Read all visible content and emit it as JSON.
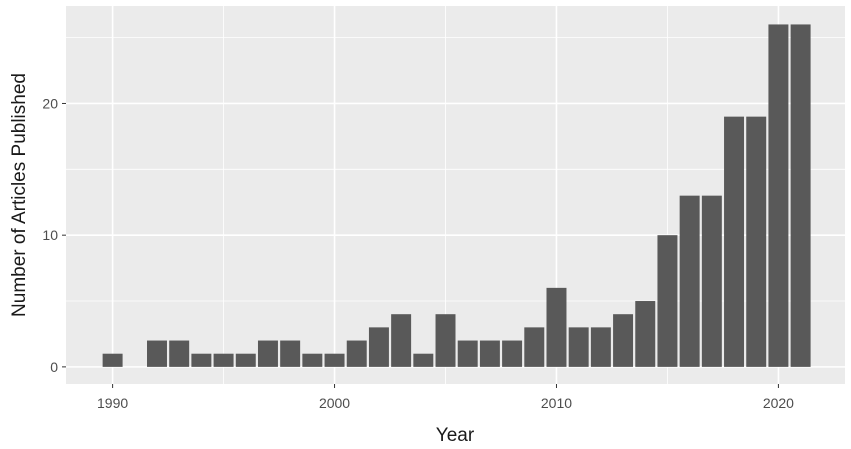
{
  "chart_data": {
    "type": "bar",
    "title": "",
    "xlabel": "Year",
    "ylabel": "Number of Articles Published",
    "x": [
      1990,
      1991,
      1992,
      1993,
      1994,
      1995,
      1996,
      1997,
      1998,
      1999,
      2000,
      2001,
      2002,
      2003,
      2004,
      2005,
      2006,
      2007,
      2008,
      2009,
      2010,
      2011,
      2012,
      2013,
      2014,
      2015,
      2016,
      2017,
      2018,
      2019,
      2020,
      2021
    ],
    "values": [
      1,
      0,
      2,
      2,
      1,
      1,
      1,
      2,
      2,
      1,
      1,
      2,
      3,
      4,
      1,
      4,
      2,
      2,
      2,
      3,
      6,
      3,
      3,
      4,
      5,
      10,
      13,
      13,
      19,
      19,
      26,
      26
    ],
    "xlim": [
      1987.9,
      1923.0
    ],
    "ylim": [
      -1.3,
      27.4
    ],
    "xticks": [
      1990,
      2000,
      2010,
      2020
    ],
    "yticks": [
      0,
      10,
      20
    ],
    "grid": true,
    "colors": {
      "bar": "#595959",
      "panel": "#ebebeb",
      "grid": "#ffffff",
      "text": "#1a1a1a",
      "tick_text": "#4d4d4d"
    }
  }
}
